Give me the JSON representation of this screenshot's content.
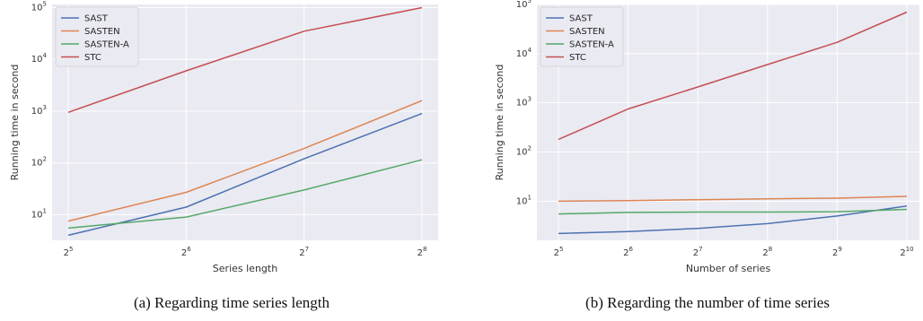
{
  "colors": {
    "SAST": "#4c72b0",
    "SASTEN": "#dd8452",
    "SASTEN-A": "#55a868",
    "STC": "#c44e52",
    "plot_bg": "#eaeaf2",
    "grid": "#ffffff"
  },
  "chart_data": [
    {
      "type": "line",
      "caption": "(a) Regarding time series length",
      "xlabel": "Series length",
      "ylabel": "Running time in second",
      "x_scale": "log2",
      "y_scale": "log10",
      "x": [
        32,
        64,
        128,
        256
      ],
      "x_tick_bases": [
        "2",
        "2",
        "2",
        "2"
      ],
      "x_tick_exponents": [
        "5",
        "6",
        "7",
        "8"
      ],
      "y_tick_bases": [
        "10",
        "10",
        "10",
        "10",
        "10"
      ],
      "y_tick_exponents": [
        "1",
        "2",
        "3",
        "4",
        "5"
      ],
      "y_tick_values": [
        10,
        100,
        1000,
        10000,
        100000
      ],
      "ylim": [
        3.2,
        115000
      ],
      "grid": true,
      "legend_position": "top-left",
      "series": [
        {
          "name": "SAST",
          "values": [
            4,
            14,
            120,
            900
          ]
        },
        {
          "name": "SASTEN",
          "values": [
            7.5,
            27,
            190,
            1600
          ]
        },
        {
          "name": "SASTEN-A",
          "values": [
            5.5,
            9,
            30,
            115
          ]
        },
        {
          "name": "STC",
          "values": [
            950,
            6000,
            35000,
            100000
          ]
        }
      ]
    },
    {
      "type": "line",
      "caption": "(b) Regarding the number of time series",
      "xlabel": "Number of series",
      "ylabel": "Running time in second",
      "x_scale": "log2",
      "y_scale": "log10",
      "x": [
        32,
        64,
        128,
        256,
        512,
        1024
      ],
      "x_tick_bases": [
        "2",
        "2",
        "2",
        "2",
        "2",
        "2"
      ],
      "x_tick_exponents": [
        "5",
        "6",
        "7",
        "8",
        "9",
        "10"
      ],
      "y_tick_bases": [
        "10",
        "10",
        "10",
        "10",
        "10"
      ],
      "y_tick_exponents": [
        "1",
        "2",
        "3",
        "4",
        "5"
      ],
      "y_tick_values": [
        10,
        100,
        1000,
        10000,
        100000
      ],
      "ylim": [
        1.6,
        100000
      ],
      "grid": true,
      "legend_position": "top-left",
      "series": [
        {
          "name": "SAST",
          "values": [
            2.2,
            2.4,
            2.8,
            3.5,
            5,
            8
          ]
        },
        {
          "name": "SASTEN",
          "values": [
            10,
            10.3,
            10.7,
            11.2,
            11.5,
            12.5
          ]
        },
        {
          "name": "SASTEN-A",
          "values": [
            5.5,
            5.9,
            6,
            6,
            6.1,
            6.8
          ]
        },
        {
          "name": "STC",
          "values": [
            180,
            750,
            2100,
            6000,
            17000,
            70000
          ]
        }
      ]
    }
  ]
}
